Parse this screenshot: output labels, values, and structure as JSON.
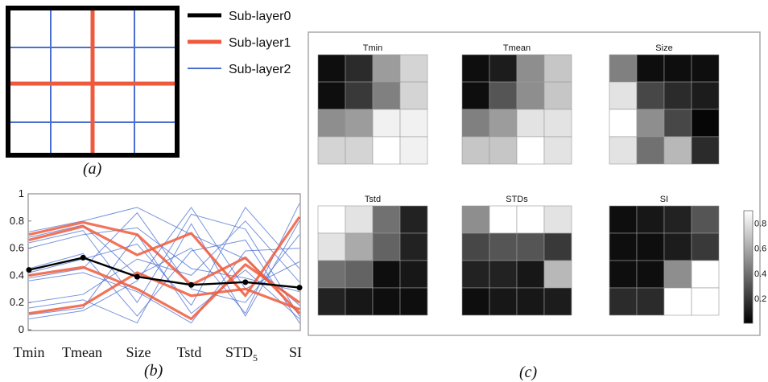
{
  "panel_a": {
    "caption": "(a)",
    "legend": [
      {
        "label": "Sub-layer0",
        "color": "#000000"
      },
      {
        "label": "Sub-layer1",
        "color": "#f05a3c"
      },
      {
        "label": "Sub-layer2",
        "color": "#4a6fd0"
      }
    ]
  },
  "panel_b": {
    "caption": "(b)",
    "x_labels": [
      "Tmin",
      "Tmean",
      "Size",
      "Tstd",
      "STD",
      "SI"
    ],
    "x_label_subscript": {
      "index": 4,
      "text": "5"
    },
    "y_ticks": [
      "0",
      "0.2",
      "0.4",
      "0.6",
      "0.8",
      "1"
    ]
  },
  "panel_c": {
    "caption": "(c)",
    "colorbar_ticks": [
      "0.8",
      "0.6",
      "0.4",
      "0.2"
    ],
    "heatmaps": [
      {
        "title": "Tmin"
      },
      {
        "title": "Tmean"
      },
      {
        "title": "Size"
      },
      {
        "title": "Tstd"
      },
      {
        "title": "STDs"
      },
      {
        "title": "SI"
      }
    ]
  },
  "chart_data": [
    {
      "type": "line",
      "panel": "b",
      "categories": [
        "Tmin",
        "Tmean",
        "Size",
        "Tstd",
        "STD5",
        "SI"
      ],
      "ylim": [
        0,
        1
      ],
      "series": [
        {
          "name": "Sub-layer0",
          "color": "#000000",
          "values": [
            0.44,
            0.53,
            0.39,
            0.33,
            0.35,
            0.31
          ]
        },
        {
          "color": "#f05a3c",
          "values": [
            0.7,
            0.79,
            0.7,
            0.33,
            0.53,
            0.12
          ]
        },
        {
          "color": "#f05a3c",
          "values": [
            0.66,
            0.76,
            0.55,
            0.71,
            0.25,
            0.83
          ]
        },
        {
          "color": "#f05a3c",
          "values": [
            0.4,
            0.46,
            0.3,
            0.08,
            0.48,
            0.2
          ]
        },
        {
          "color": "#f05a3c",
          "values": [
            0.12,
            0.18,
            0.42,
            0.25,
            0.3,
            0.15
          ]
        },
        {
          "color": "#4a6fd0",
          "values": [
            0.72,
            0.8,
            0.9,
            0.7,
            0.52,
            0.18
          ]
        },
        {
          "color": "#4a6fd0",
          "values": [
            0.68,
            0.77,
            0.4,
            0.6,
            0.12,
            0.93
          ]
        },
        {
          "color": "#4a6fd0",
          "values": [
            0.64,
            0.73,
            0.2,
            0.85,
            0.74,
            0.1
          ]
        },
        {
          "color": "#4a6fd0",
          "values": [
            0.6,
            0.7,
            0.75,
            0.45,
            0.38,
            0.28
          ]
        },
        {
          "color": "#4a6fd0",
          "values": [
            0.45,
            0.56,
            0.1,
            0.58,
            0.66,
            0.05
          ]
        },
        {
          "color": "#4a6fd0",
          "values": [
            0.42,
            0.52,
            0.63,
            0.18,
            0.9,
            0.45
          ]
        },
        {
          "color": "#4a6fd0",
          "values": [
            0.38,
            0.45,
            0.86,
            0.3,
            0.2,
            0.7
          ]
        },
        {
          "color": "#4a6fd0",
          "values": [
            0.36,
            0.42,
            0.28,
            0.05,
            0.58,
            0.6
          ]
        },
        {
          "color": "#4a6fd0",
          "values": [
            0.2,
            0.26,
            0.52,
            0.4,
            0.8,
            0.35
          ]
        },
        {
          "color": "#4a6fd0",
          "values": [
            0.16,
            0.22,
            0.05,
            0.78,
            0.1,
            0.8
          ]
        },
        {
          "color": "#4a6fd0",
          "values": [
            0.11,
            0.16,
            0.7,
            0.12,
            0.44,
            0.08
          ]
        },
        {
          "color": "#4a6fd0",
          "values": [
            0.08,
            0.14,
            0.36,
            0.9,
            0.3,
            0.5
          ]
        }
      ]
    },
    {
      "type": "heatmap",
      "panel": "c",
      "colorbar_range": [
        0,
        0.9
      ],
      "maps": [
        {
          "title": "Tmin",
          "values": [
            [
              0.05,
              0.15,
              0.55,
              0.75
            ],
            [
              0.05,
              0.2,
              0.45,
              0.75
            ],
            [
              0.5,
              0.55,
              0.85,
              0.85
            ],
            [
              0.75,
              0.75,
              0.9,
              0.85
            ]
          ]
        },
        {
          "title": "Tmean",
          "values": [
            [
              0.05,
              0.1,
              0.5,
              0.7
            ],
            [
              0.05,
              0.3,
              0.5,
              0.7
            ],
            [
              0.45,
              0.55,
              0.8,
              0.8
            ],
            [
              0.7,
              0.7,
              0.9,
              0.8
            ]
          ]
        },
        {
          "title": "Size",
          "values": [
            [
              0.45,
              0.05,
              0.05,
              0.05
            ],
            [
              0.8,
              0.25,
              0.15,
              0.1
            ],
            [
              0.9,
              0.5,
              0.25,
              0.02
            ],
            [
              0.8,
              0.4,
              0.65,
              0.15
            ]
          ]
        },
        {
          "title": "Tstd",
          "values": [
            [
              0.9,
              0.8,
              0.4,
              0.12
            ],
            [
              0.8,
              0.6,
              0.35,
              0.12
            ],
            [
              0.4,
              0.35,
              0.05,
              0.08
            ],
            [
              0.12,
              0.08,
              0.05,
              0.05
            ]
          ]
        },
        {
          "title": "STDs",
          "values": [
            [
              0.5,
              0.9,
              0.9,
              0.8
            ],
            [
              0.25,
              0.3,
              0.3,
              0.2
            ],
            [
              0.12,
              0.12,
              0.08,
              0.65
            ],
            [
              0.05,
              0.08,
              0.08,
              0.1
            ]
          ]
        },
        {
          "title": "SI",
          "values": [
            [
              0.05,
              0.08,
              0.12,
              0.3
            ],
            [
              0.05,
              0.05,
              0.1,
              0.2
            ],
            [
              0.05,
              0.05,
              0.5,
              0.9
            ],
            [
              0.15,
              0.15,
              0.9,
              0.9
            ]
          ]
        }
      ]
    }
  ]
}
